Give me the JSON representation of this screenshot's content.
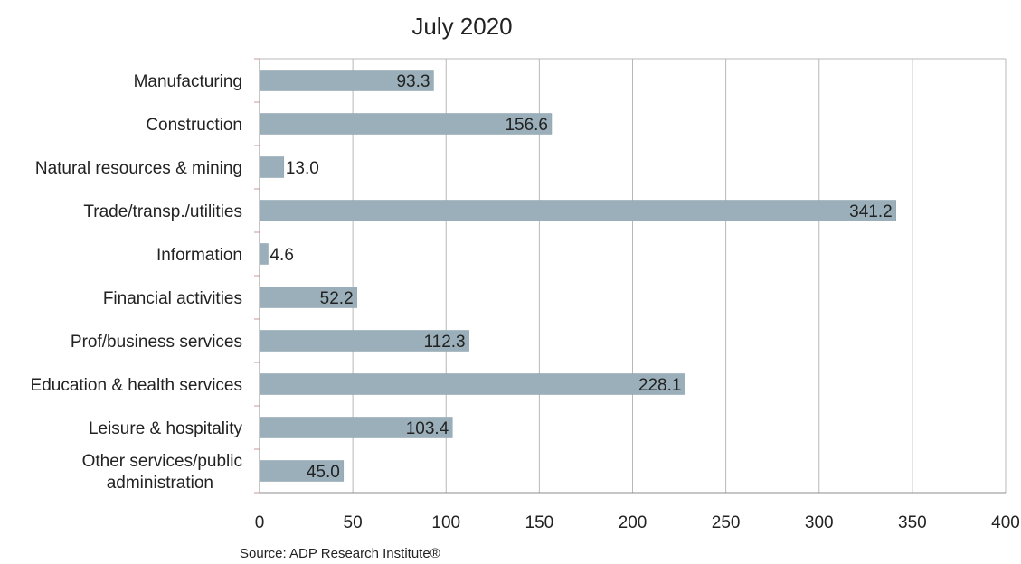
{
  "chart_data": {
    "type": "bar",
    "orientation": "horizontal",
    "title": "July 2020",
    "categories": [
      "Manufacturing",
      "Construction",
      "Natural resources & mining",
      "Trade/transp./utilities",
      "Information",
      "Financial activities",
      "Prof/business services",
      "Education & health services",
      "Leisure & hospitality",
      "Other services/public administration"
    ],
    "category_lines": [
      [
        "Manufacturing"
      ],
      [
        "Construction"
      ],
      [
        "Natural resources & mining"
      ],
      [
        "Trade/transp./utilities"
      ],
      [
        "Information"
      ],
      [
        "Financial activities"
      ],
      [
        "Prof/business services"
      ],
      [
        "Education & health services"
      ],
      [
        "Leisure & hospitality"
      ],
      [
        "Other services/public",
        "administration"
      ]
    ],
    "values": [
      93.3,
      156.6,
      13.0,
      341.2,
      4.6,
      52.2,
      112.3,
      228.1,
      103.4,
      45.0
    ],
    "value_labels": [
      "93.3",
      "156.6",
      "13.0",
      "341.2",
      "4.6",
      "52.2",
      "112.3",
      "228.1",
      "103.4",
      "45.0"
    ],
    "xlim": [
      0,
      400
    ],
    "xticks": [
      0,
      50,
      100,
      150,
      200,
      250,
      300,
      350,
      400
    ],
    "xlabel": "",
    "ylabel": "",
    "grid": "vertical",
    "legend": "none",
    "colors": {
      "bar": "#9aafb9",
      "grid": "#b8b8b8",
      "axis": "#8c8c8c",
      "tickmark": "#c49a9a"
    },
    "source": "Source: ADP Research Institute®"
  }
}
